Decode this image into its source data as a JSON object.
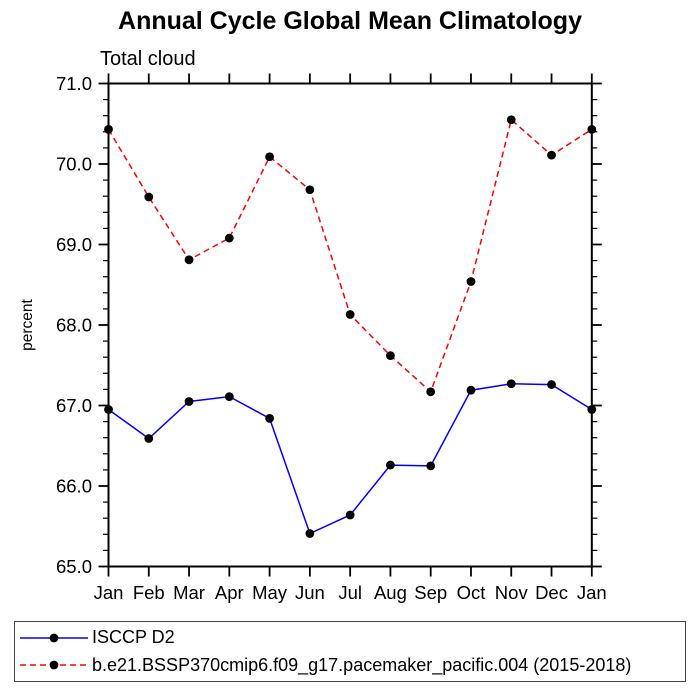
{
  "chart_data": {
    "type": "line",
    "title": "Annual Cycle Global Mean Climatology",
    "subtitle": "Total cloud",
    "ylabel": "percent",
    "xlabel": "",
    "categories": [
      "Jan",
      "Feb",
      "Mar",
      "Apr",
      "May",
      "Jun",
      "Jul",
      "Aug",
      "Sep",
      "Oct",
      "Nov",
      "Dec",
      "Jan"
    ],
    "ylim": [
      65.0,
      71.0
    ],
    "ytick_interval": 1.0,
    "ytick_labels": [
      "71.0",
      "70.0",
      "69.0",
      "68.0",
      "67.0",
      "66.0",
      "65.0"
    ],
    "minor_ticks_per_major": 4,
    "grid": false,
    "legend_position": "bottom-box",
    "axis_color": "#000000",
    "series": [
      {
        "name": "ISCCP D2",
        "color": "#0000ff",
        "line_style": "solid",
        "marker": "filled-circle",
        "marker_color": "#000000",
        "values": [
          66.95,
          66.59,
          67.05,
          67.11,
          66.84,
          65.41,
          65.64,
          66.26,
          66.25,
          67.19,
          67.27,
          67.26,
          66.95
        ]
      },
      {
        "name": "b.e21.BSSP370cmip6.f09_g17.pacemaker_pacific.004 (2015-2018)",
        "color": "#ff0000",
        "line_style": "dashed",
        "marker": "filled-circle",
        "marker_color": "#000000",
        "values": [
          70.43,
          69.59,
          68.81,
          69.08,
          70.09,
          69.68,
          68.13,
          67.62,
          67.17,
          68.54,
          70.55,
          70.11,
          70.43
        ]
      }
    ]
  }
}
